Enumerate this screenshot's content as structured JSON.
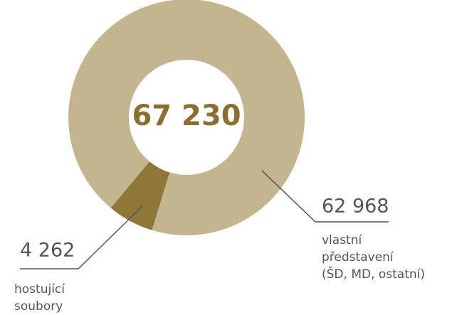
{
  "chart_data": {
    "type": "donut",
    "center_label": "67 230",
    "categories": [
      [
        "hostující",
        "soubory"
      ],
      [
        "vlastní",
        "představení",
        "(ŠD, MD, ostatní)"
      ]
    ],
    "values": [
      4262,
      62968
    ],
    "value_labels": [
      "4 262",
      "62 968"
    ],
    "colors": [
      "#8f7738",
      "#c4b591"
    ]
  }
}
